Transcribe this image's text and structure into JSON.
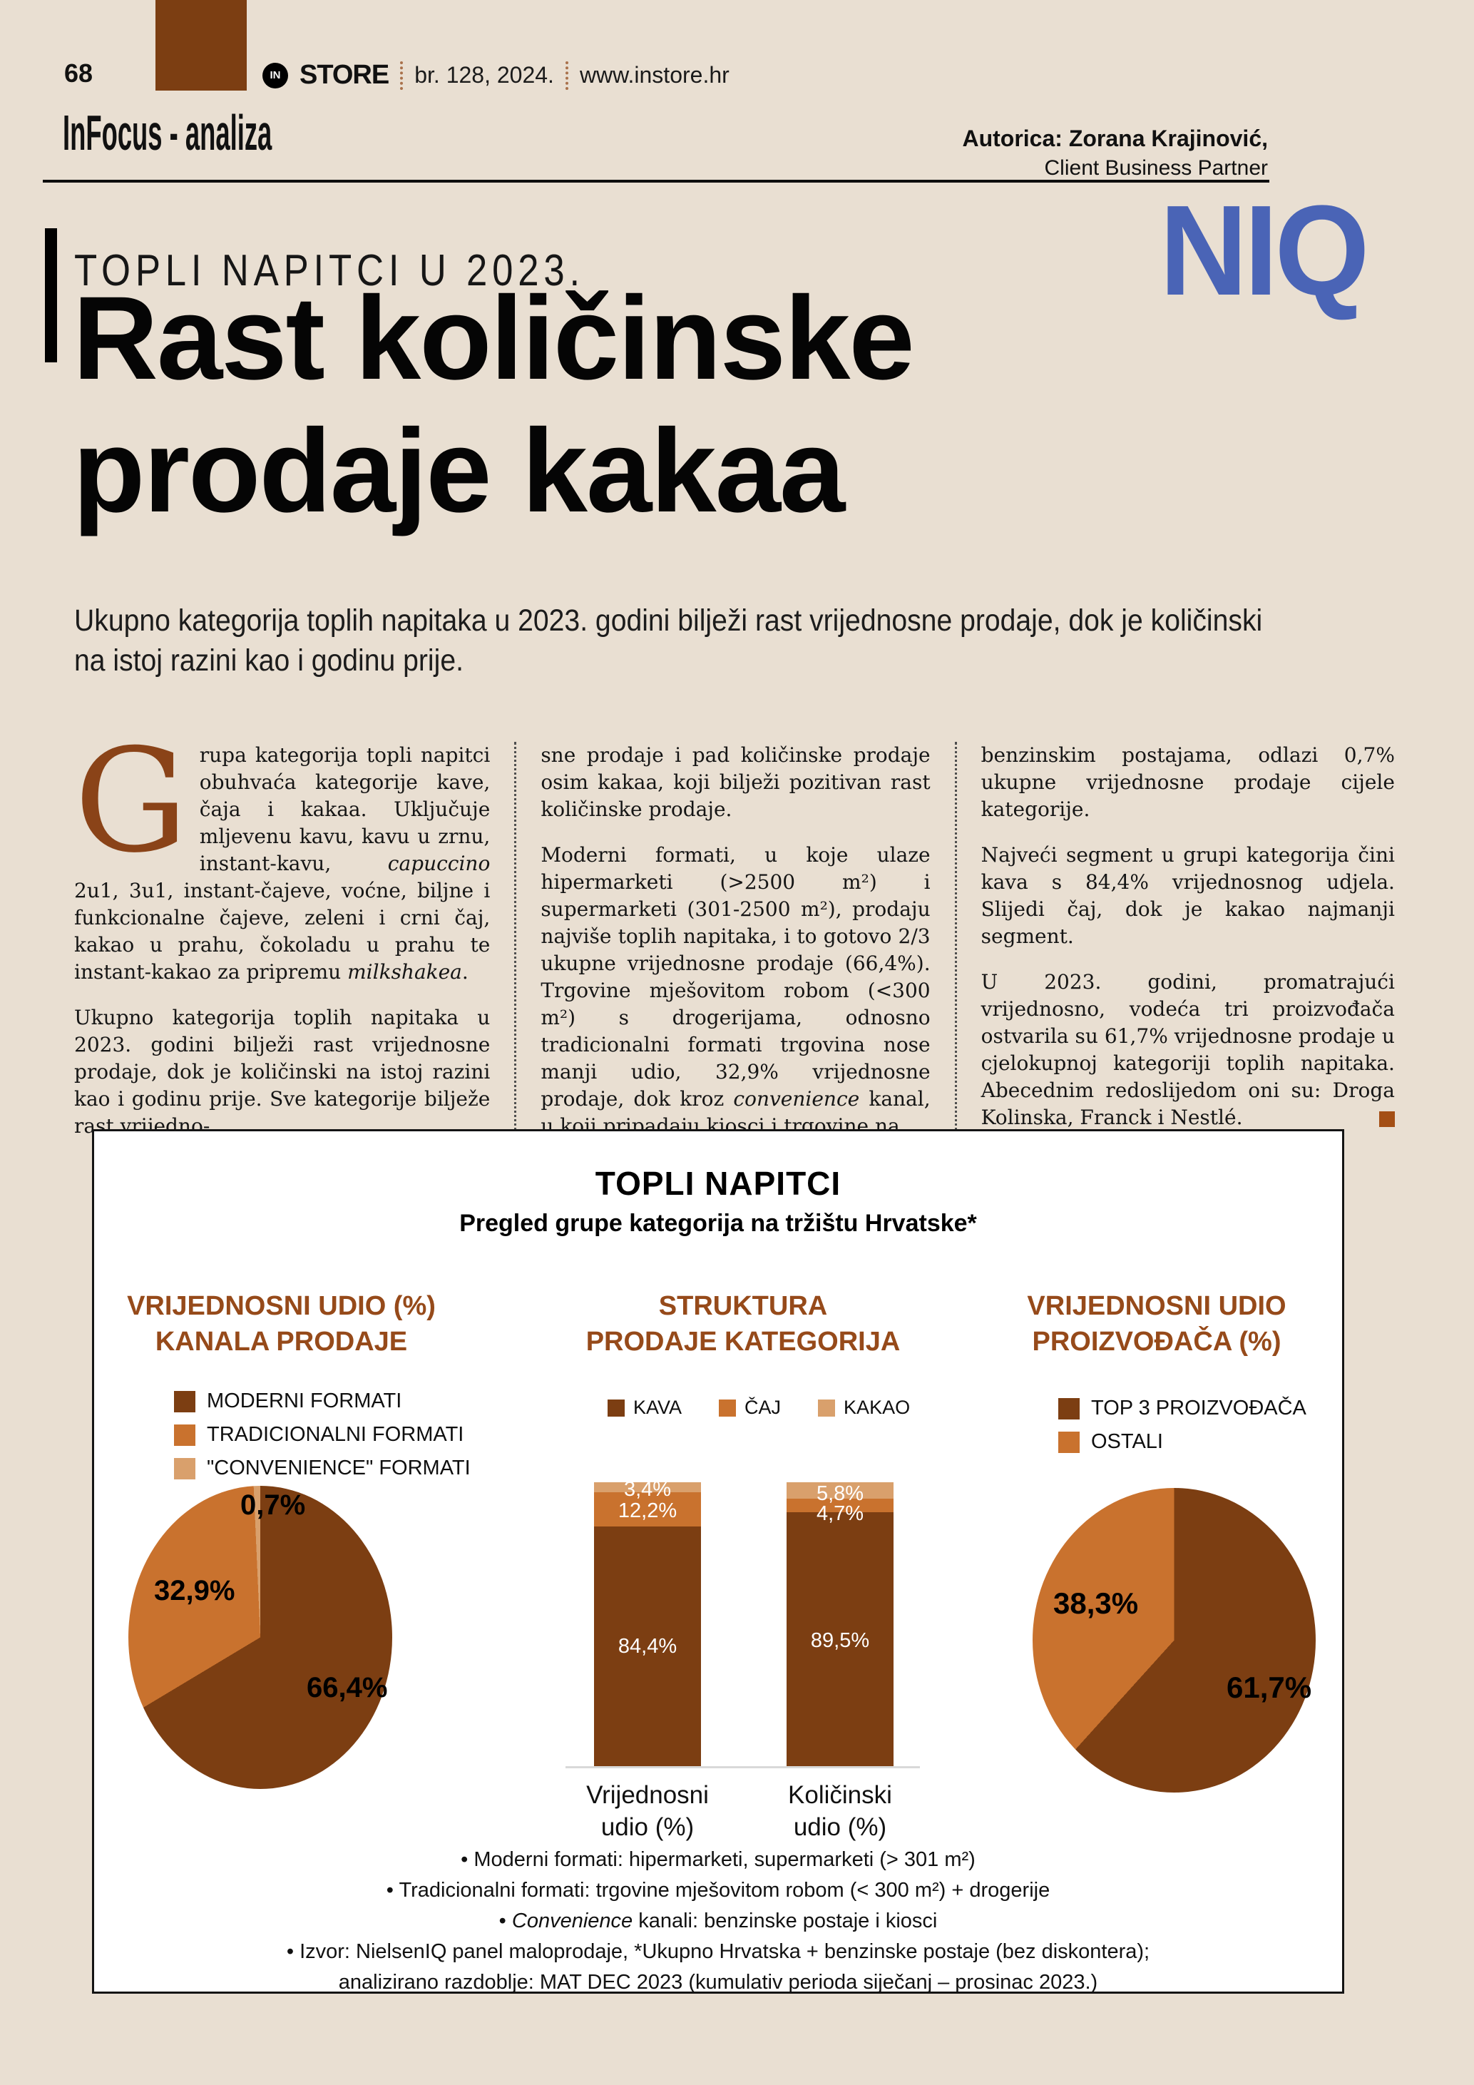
{
  "header": {
    "page_number": "68",
    "logo_badge": "IN",
    "logo_name": "STORE",
    "issue": "br. 128, 2024.",
    "website": "www.instore.hr",
    "section_title": "InFocus - analiza",
    "author_name": "Autorica: Zorana Krajinović,",
    "author_role": "Client Business Partner"
  },
  "article": {
    "kicker": "TOPLI NAPITCI U 2023.",
    "brand_logo": "NIQ",
    "headline_line1": "Rast količinske",
    "headline_line2": "prodaje kakaa",
    "lead_line1": "Ukupno kategorija toplih napitaka u 2023. godini bilježi rast vrijednosne prodaje, dok je količinski",
    "lead_line2": "na istoj razini kao i godinu prije.",
    "dropcap": "G",
    "col1_p1": [
      {
        "t": "rupa kategorija topli napitci obuhvaća kategorije kave, čaja i kakaa. Uključuje mljevenu kavu, kavu u zrnu, instant-kavu, "
      },
      {
        "t": "capuccino",
        "i": true
      },
      {
        "t": " 2u1, 3u1, instant-čajeve, voćne, biljne i funkcionalne čajeve, zeleni i crni čaj, kakao u prahu, čokoladu u prahu te instant-kakao za pripremu "
      },
      {
        "t": "milkshakea",
        "i": true
      },
      {
        "t": "."
      }
    ],
    "col1_p2": [
      {
        "t": "Ukupno kategorija toplih napitaka u 2023. godini bilježi rast vrijednosne prodaje, dok je količinski na istoj razini kao i godinu prije. Sve kategorije bilježe rast vrijedno-"
      }
    ],
    "col2_p1": [
      {
        "t": "sne prodaje i pad količinske prodaje osim kakaa, koji bilježi pozitivan rast količinske prodaje."
      }
    ],
    "col2_p2": [
      {
        "t": "Moderni formati, u koje ulaze hipermarketi (>2500 m²) i supermarketi (301-2500 m²), prodaju najviše toplih napitaka, i to gotovo 2/3 ukupne vrijednosne prodaje (66,4%). Trgovine mješovitom robom (<300 m²) s drogerijama, odnosno tradicionalni formati trgovina nose manji udio, 32,9% vrijednosne prodaje, dok kroz "
      },
      {
        "t": "convenience",
        "i": true
      },
      {
        "t": " kanal, u koji pripadaju kiosci i trgovine na"
      }
    ],
    "col3_p1": [
      {
        "t": "benzinskim postajama, odlazi 0,7% ukupne vrijednosne prodaje cijele kategorije."
      }
    ],
    "col3_p2": [
      {
        "t": "Najveći segment u grupi kategorija čini kava s 84,4% vrijednosnog udjela. Slijedi čaj, dok je kakao najmanji segment."
      }
    ],
    "col3_p3": [
      {
        "t": "U 2023. godini, promatrajući vrijednosno, vodeća tri proizvođača ostvarila su 61,7% vrijednosne prodaje u cjelokupnoj kategoriji toplih napitaka. Abecednim redoslijedom oni su: Droga Kolinska, Franck i Nestlé."
      }
    ]
  },
  "infographic": {
    "title": "TOPLI NAPITCI",
    "subtitle": "Pregled grupe kategorija na tržištu Hrvatske*",
    "footnotes": [
      [
        {
          "t": "•  Moderni formati: hipermarketi, supermarketi (> 301 m²)"
        }
      ],
      [
        {
          "t": "•  Tradicionalni formati: trgovine mješovitom robom (< 300 m²) + drogerije"
        }
      ],
      [
        {
          "t": "•  "
        },
        {
          "t": "Convenience",
          "i": true
        },
        {
          "t": " kanali: benzinske postaje i kiosci"
        }
      ],
      [
        {
          "t": "•  Izvor: NielsenIQ panel maloprodaje, *Ukupno Hrvatska + benzinske postaje (bez diskontera);"
        }
      ],
      [
        {
          "t": "analizirano razdoblje: MAT DEC 2023 (kumulativ perioda siječanj – prosinac 2023.)"
        }
      ]
    ]
  },
  "chart_data": [
    {
      "type": "pie",
      "title": "VRIJEDNOSNI UDIO (%) KANALA PRODAJE",
      "title_lines": [
        "VRIJEDNOSNI UDIO (%)",
        "KANALA PRODAJE"
      ],
      "legend": [
        "MODERNI FORMATI",
        "TRADICIONALNI FORMATI",
        "\"CONVENIENCE\" FORMATI"
      ],
      "values": [
        66.4,
        32.9,
        0.7
      ],
      "value_labels": [
        "66,4%",
        "32,9%",
        "0,7%"
      ],
      "colors": [
        "#7c3e12",
        "#c9722e",
        "#d9a06c"
      ],
      "legend_position": "above-pie"
    },
    {
      "type": "bar",
      "stacked": true,
      "title": "STRUKTURA PRODAJE KATEGORIJA",
      "title_lines": [
        "STRUKTURA",
        "PRODAJE KATEGORIJA"
      ],
      "categories": [
        "Vrijednosni udio (%)",
        "Količinski udio (%)"
      ],
      "category_lines": [
        [
          "Vrijednosni",
          "udio (%)"
        ],
        [
          "Količinski",
          "udio (%)"
        ]
      ],
      "series": [
        {
          "name": "KAVA",
          "values": [
            84.4,
            89.5
          ]
        },
        {
          "name": "ČAJ",
          "values": [
            12.2,
            4.7
          ]
        },
        {
          "name": "KAKAO",
          "values": [
            3.4,
            5.8
          ]
        }
      ],
      "value_labels": [
        [
          "84,4%",
          "12,2%",
          "3,4%"
        ],
        [
          "89,5%",
          "4,7%",
          "5,8%"
        ]
      ],
      "colors": [
        "#7c3e12",
        "#c9722e",
        "#d9a06c"
      ],
      "ylim": [
        0,
        100
      ],
      "grid": false,
      "legend_position": "top-row"
    },
    {
      "type": "pie",
      "title": "VRIJEDNOSNI UDIO PROIZVOĐAČA (%)",
      "title_lines": [
        "VRIJEDNOSNI UDIO",
        "PROIZVOĐAČA (%)"
      ],
      "legend": [
        "TOP 3 PROIZVOĐAČA",
        "OSTALI"
      ],
      "values": [
        61.7,
        38.3
      ],
      "value_labels": [
        "61,7%",
        "38,3%"
      ],
      "colors": [
        "#7c3e12",
        "#c9722e"
      ],
      "legend_position": "above-pie"
    }
  ],
  "colors": {
    "page_bg": "#e9dfd2",
    "dark_brown": "#7c3e12",
    "orange": "#c9722e",
    "tan": "#d9a06c",
    "chart_title_brown": "#964a1a",
    "dropcap_brown": "#8a4318",
    "niq_blue": "#4a64b6"
  }
}
